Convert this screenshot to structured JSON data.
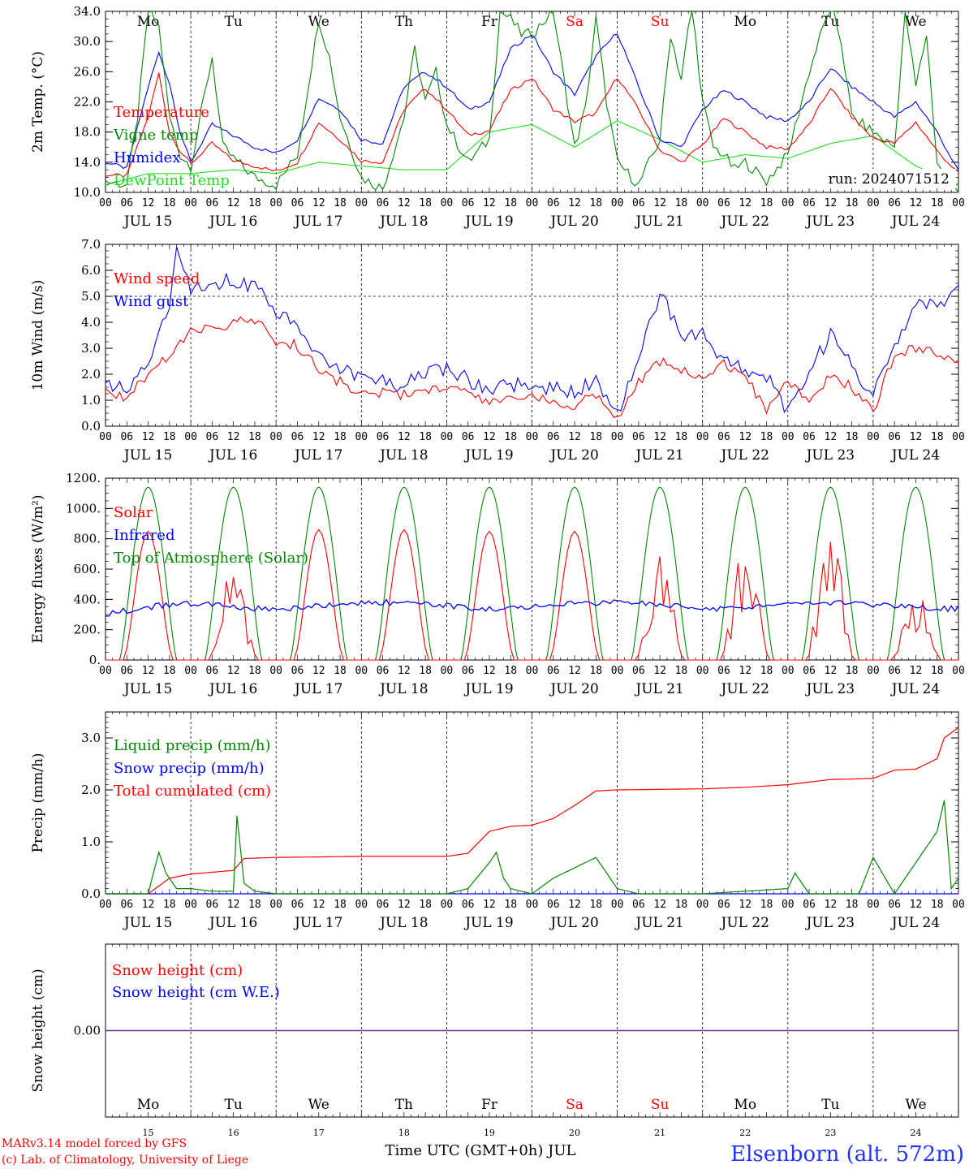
{
  "colors": {
    "red": "#ff0000",
    "green": "#008800",
    "blue": "#0000ff",
    "lightgreen": "#22dd22",
    "purple": "#7b2fa0",
    "station": "#2233ff"
  },
  "axis": {
    "dates": [
      "JUL 15",
      "JUL 16",
      "JUL 17",
      "JUL 18",
      "JUL 19",
      "JUL 20",
      "JUL 21",
      "JUL 22",
      "JUL 23",
      "JUL 24"
    ],
    "hour_labels": [
      "00",
      "06",
      "12",
      "18"
    ],
    "weekdays": [
      "Mo",
      "Tu",
      "We",
      "Th",
      "Fr",
      "Sa",
      "Su",
      "Mo",
      "Tu",
      "We"
    ],
    "weekend_flags": [
      false,
      false,
      false,
      false,
      false,
      true,
      true,
      false,
      false,
      false
    ],
    "day_numbers": [
      "15",
      "16",
      "17",
      "18",
      "19",
      "20",
      "21",
      "22",
      "23",
      "24"
    ]
  },
  "panels": [
    {
      "ylabel": "2m Temp. (°C)",
      "ytick_labels": [
        "10.0",
        "14.0",
        "18.0",
        "22.0",
        "26.0",
        "30.0",
        "34.0"
      ],
      "legend": [
        "Temperature",
        "Vigne temp",
        "Humidex",
        "DewPoint Temp"
      ],
      "note": "run: 2024071512"
    },
    {
      "ylabel": "10m Wind (m/s)",
      "ytick_labels": [
        "0.0",
        "1.0",
        "2.0",
        "3.0",
        "4.0",
        "5.0",
        "6.0",
        "7.0"
      ],
      "legend": [
        "Wind speed",
        "Wind gust"
      ]
    },
    {
      "ylabel": "Energy fluxes (W/m²)",
      "ytick_labels": [
        "0.",
        "200.",
        "400.",
        "600.",
        "800.",
        "1000.",
        "1200."
      ],
      "legend": [
        "Solar",
        "Infrared",
        "Top of Atmosphere (Solar)"
      ]
    },
    {
      "ylabel": "Precip (mm/h)",
      "ytick_labels": [
        "0.0",
        "1.0",
        "2.0",
        "3.0"
      ],
      "legend": [
        "Liquid precip (mm/h)",
        "Snow precip (mm/h)",
        "Total cumulated (cm)"
      ]
    },
    {
      "ylabel": "Snow height (cm)",
      "ytick_labels": [
        "0.00"
      ],
      "legend": [
        "Snow height (cm)",
        "Snow height (cm W.E.)"
      ]
    }
  ],
  "footer": {
    "credit_line1": "MARv3.14 model forced by GFS",
    "credit_line2": "(c) Lab. of Climatology, University of Liege",
    "xlabel": "Time UTC (GMT+0h) JUL",
    "station": "Elsenborn (alt. 572m)"
  },
  "chart_data": [
    {
      "type": "line",
      "ylabel": "2m Temp. (°C)",
      "ylim": [
        10,
        34
      ],
      "x_unit": "hours since JUL 15 00 UTC",
      "x_range": [
        0,
        240
      ],
      "series": [
        {
          "name": "Temperature",
          "color": "red",
          "x": [
            0,
            6,
            12,
            15,
            18,
            21,
            24,
            30,
            36,
            42,
            48,
            54,
            60,
            66,
            72,
            78,
            84,
            90,
            96,
            102,
            108,
            114,
            120,
            126,
            132,
            138,
            144,
            150,
            156,
            162,
            168,
            174,
            180,
            186,
            192,
            198,
            204,
            210,
            216,
            222,
            228,
            234,
            240
          ],
          "y": [
            12.3,
            12.2,
            20,
            25.8,
            18,
            15.5,
            13.8,
            16.5,
            14.2,
            13.5,
            12.8,
            14,
            19.3,
            17,
            14.2,
            14,
            21,
            23.8,
            21,
            17.6,
            18.2,
            23.5,
            25.2,
            21,
            19.4,
            20.5,
            25.3,
            21,
            15.6,
            14,
            16.3,
            19.8,
            18,
            16,
            15.8,
            19,
            23.9,
            20,
            17.2,
            16.5,
            19.3,
            15.5,
            12.5
          ]
        },
        {
          "name": "Vigne temp",
          "color": "green",
          "x": [
            0,
            6,
            9,
            12,
            15,
            18,
            21,
            24,
            30,
            33,
            36,
            42,
            48,
            54,
            60,
            63,
            66,
            72,
            78,
            84,
            87,
            90,
            93,
            96,
            102,
            108,
            111,
            114,
            117,
            120,
            126,
            132,
            135,
            138,
            141,
            144,
            150,
            156,
            159,
            162,
            165,
            168,
            171,
            174,
            177,
            180,
            186,
            192,
            198,
            204,
            207,
            210,
            216,
            222,
            225,
            228,
            231,
            234,
            237,
            240
          ],
          "y": [
            11.5,
            11,
            20,
            34,
            32,
            20,
            15,
            13.5,
            28,
            16,
            14.5,
            12,
            11,
            15,
            33,
            28,
            20,
            12,
            10.5,
            20,
            29,
            22,
            26,
            19,
            14,
            17,
            34,
            33,
            31,
            31,
            34,
            16,
            21,
            33,
            22,
            14,
            11,
            17,
            31,
            25,
            35,
            22,
            16,
            15,
            13,
            14,
            11.5,
            15,
            26,
            35,
            30,
            20,
            18,
            16,
            34,
            24,
            31,
            14,
            11,
            10.5
          ]
        },
        {
          "name": "Humidex",
          "color": "blue",
          "x": [
            0,
            6,
            12,
            15,
            18,
            21,
            24,
            30,
            36,
            42,
            48,
            54,
            60,
            66,
            72,
            78,
            84,
            90,
            96,
            102,
            108,
            114,
            120,
            126,
            132,
            138,
            144,
            150,
            156,
            162,
            168,
            174,
            180,
            186,
            192,
            198,
            204,
            210,
            216,
            222,
            228,
            234,
            240
          ],
          "y": [
            14,
            13.2,
            24,
            28.5,
            24.5,
            18,
            14,
            19,
            17.5,
            16,
            15.2,
            17,
            22.5,
            21,
            17,
            16.5,
            24,
            26,
            24,
            21,
            22,
            29,
            31,
            26,
            23,
            28,
            31.2,
            24,
            17,
            16,
            21,
            23.5,
            22,
            20,
            19.5,
            22,
            26.5,
            24,
            22,
            20,
            22,
            18,
            12.8
          ]
        },
        {
          "name": "DewPoint Temp",
          "color": "lightgreen",
          "x": [
            0,
            12,
            24,
            36,
            48,
            60,
            72,
            84,
            96,
            108,
            120,
            132,
            144,
            156,
            168,
            180,
            192,
            204,
            216,
            228,
            240
          ],
          "y": [
            11,
            12.5,
            12.5,
            13,
            12.5,
            14,
            13.5,
            13,
            13,
            18,
            19,
            16,
            19.5,
            17,
            14,
            15,
            14.5,
            16.5,
            17.5,
            13.5,
            11
          ]
        }
      ]
    },
    {
      "type": "line",
      "ylabel": "10m Wind (m/s)",
      "ylim": [
        0,
        7
      ],
      "x_unit": "hours since JUL 15 00 UTC",
      "x_range": [
        0,
        240
      ],
      "series": [
        {
          "name": "Wind speed",
          "color": "red",
          "x": [
            0,
            6,
            12,
            18,
            21,
            24,
            30,
            36,
            42,
            48,
            54,
            60,
            66,
            72,
            78,
            84,
            90,
            96,
            102,
            108,
            114,
            120,
            126,
            132,
            138,
            144,
            150,
            156,
            162,
            168,
            174,
            180,
            186,
            192,
            198,
            204,
            210,
            216,
            222,
            228,
            234,
            240
          ],
          "y": [
            1.3,
            1.1,
            2,
            2.8,
            3.2,
            3.8,
            3.7,
            4,
            4.1,
            3.3,
            3.1,
            2.2,
            1.7,
            1.2,
            1.3,
            1.2,
            1.4,
            1.5,
            1.2,
            1,
            1.1,
            1.2,
            1,
            0.8,
            1.2,
            0.3,
            1.7,
            2.5,
            2.2,
            1.7,
            2.4,
            2,
            0.5,
            1.8,
            0.8,
            2,
            1.5,
            0.5,
            2.8,
            3,
            2.8,
            2.5
          ]
        },
        {
          "name": "Wind gust",
          "color": "blue",
          "x": [
            0,
            6,
            12,
            18,
            20,
            24,
            30,
            36,
            42,
            48,
            54,
            60,
            66,
            72,
            78,
            84,
            90,
            96,
            102,
            108,
            114,
            120,
            126,
            132,
            138,
            144,
            147,
            150,
            156,
            162,
            168,
            174,
            180,
            186,
            192,
            198,
            204,
            210,
            216,
            222,
            228,
            234,
            240
          ],
          "y": [
            1.7,
            1.5,
            2.5,
            4.5,
            6.8,
            5.3,
            5.5,
            5.6,
            5.4,
            4.4,
            3.8,
            2.8,
            2.2,
            2,
            1.7,
            1.6,
            2,
            2.2,
            1.8,
            1.4,
            1.6,
            1.5,
            1.5,
            1.3,
            1.8,
            0.5,
            1.5,
            2.5,
            5.2,
            3.5,
            3.5,
            2.5,
            2.1,
            2,
            0.6,
            2.2,
            3.5,
            2.3,
            1.2,
            3,
            4.8,
            4.5,
            5.2
          ]
        }
      ]
    },
    {
      "type": "line",
      "ylabel": "Energy fluxes (W/m²)",
      "ylim": [
        0,
        1200
      ],
      "x_unit": "hours since JUL 15 00 UTC",
      "x_range": [
        0,
        240
      ],
      "series": [
        {
          "name": "Solar",
          "color": "red",
          "daily_peak_wm2": [
            850,
            650,
            860,
            860,
            850,
            850,
            710,
            800,
            860,
            480
          ]
        },
        {
          "name": "Infrared",
          "color": "blue",
          "typical_range_wm2": [
            290,
            400
          ]
        },
        {
          "name": "Top of Atmosphere (Solar)",
          "color": "green",
          "daily_peak_wm2": 1140,
          "sunrise_hour": 4,
          "sunset_hour": 20
        }
      ]
    },
    {
      "type": "line",
      "ylabel": "Precip (mm/h)",
      "ylim": [
        0,
        3.5
      ],
      "x_unit": "hours since JUL 15 00 UTC",
      "x_range": [
        0,
        240
      ],
      "series": [
        {
          "name": "Liquid precip (mm/h)",
          "color": "green",
          "x": [
            0,
            12,
            15,
            17,
            20,
            24,
            30,
            36,
            37,
            39,
            42,
            48,
            96,
            102,
            108,
            110,
            112,
            114,
            120,
            126,
            132,
            138,
            144,
            150,
            168,
            180,
            192,
            194,
            198,
            204,
            212,
            216,
            222,
            225,
            228,
            234,
            236,
            238,
            240
          ],
          "y": [
            0,
            0,
            0.8,
            0.4,
            0.1,
            0.1,
            0.05,
            0.05,
            1.5,
            0.2,
            0.05,
            0,
            0,
            0.1,
            0.6,
            0.8,
            0.3,
            0.1,
            0,
            0.3,
            0.5,
            0.7,
            0.1,
            0,
            0,
            0.05,
            0.1,
            0.4,
            0,
            0,
            0,
            0.7,
            0,
            0.3,
            0.6,
            1.2,
            1.8,
            0.1,
            0.3
          ]
        },
        {
          "name": "Snow precip (mm/h)",
          "color": "blue",
          "x": [
            0,
            240
          ],
          "y": [
            0,
            0
          ]
        },
        {
          "name": "Total cumulated (cm)",
          "color": "red",
          "x": [
            0,
            12,
            18,
            24,
            36,
            39,
            48,
            72,
            96,
            102,
            108,
            114,
            120,
            126,
            132,
            138,
            144,
            168,
            180,
            192,
            204,
            216,
            222,
            228,
            234,
            236,
            240
          ],
          "y": [
            0,
            0,
            0.3,
            0.38,
            0.45,
            0.68,
            0.7,
            0.72,
            0.72,
            0.78,
            1.2,
            1.3,
            1.32,
            1.45,
            1.7,
            1.98,
            2,
            2.02,
            2.05,
            2.1,
            2.2,
            2.22,
            2.38,
            2.4,
            2.6,
            3,
            3.2
          ]
        }
      ]
    },
    {
      "type": "line",
      "ylabel": "Snow height (cm)",
      "x_unit": "hours since JUL 15 00 UTC",
      "x_range": [
        0,
        240
      ],
      "series": [
        {
          "name": "Snow height (cm)",
          "color": "red",
          "x": [
            0,
            240
          ],
          "y": [
            0,
            0
          ]
        },
        {
          "name": "Snow height (cm W.E.)",
          "color": "blue",
          "x": [
            0,
            240
          ],
          "y": [
            0,
            0
          ]
        }
      ]
    }
  ]
}
